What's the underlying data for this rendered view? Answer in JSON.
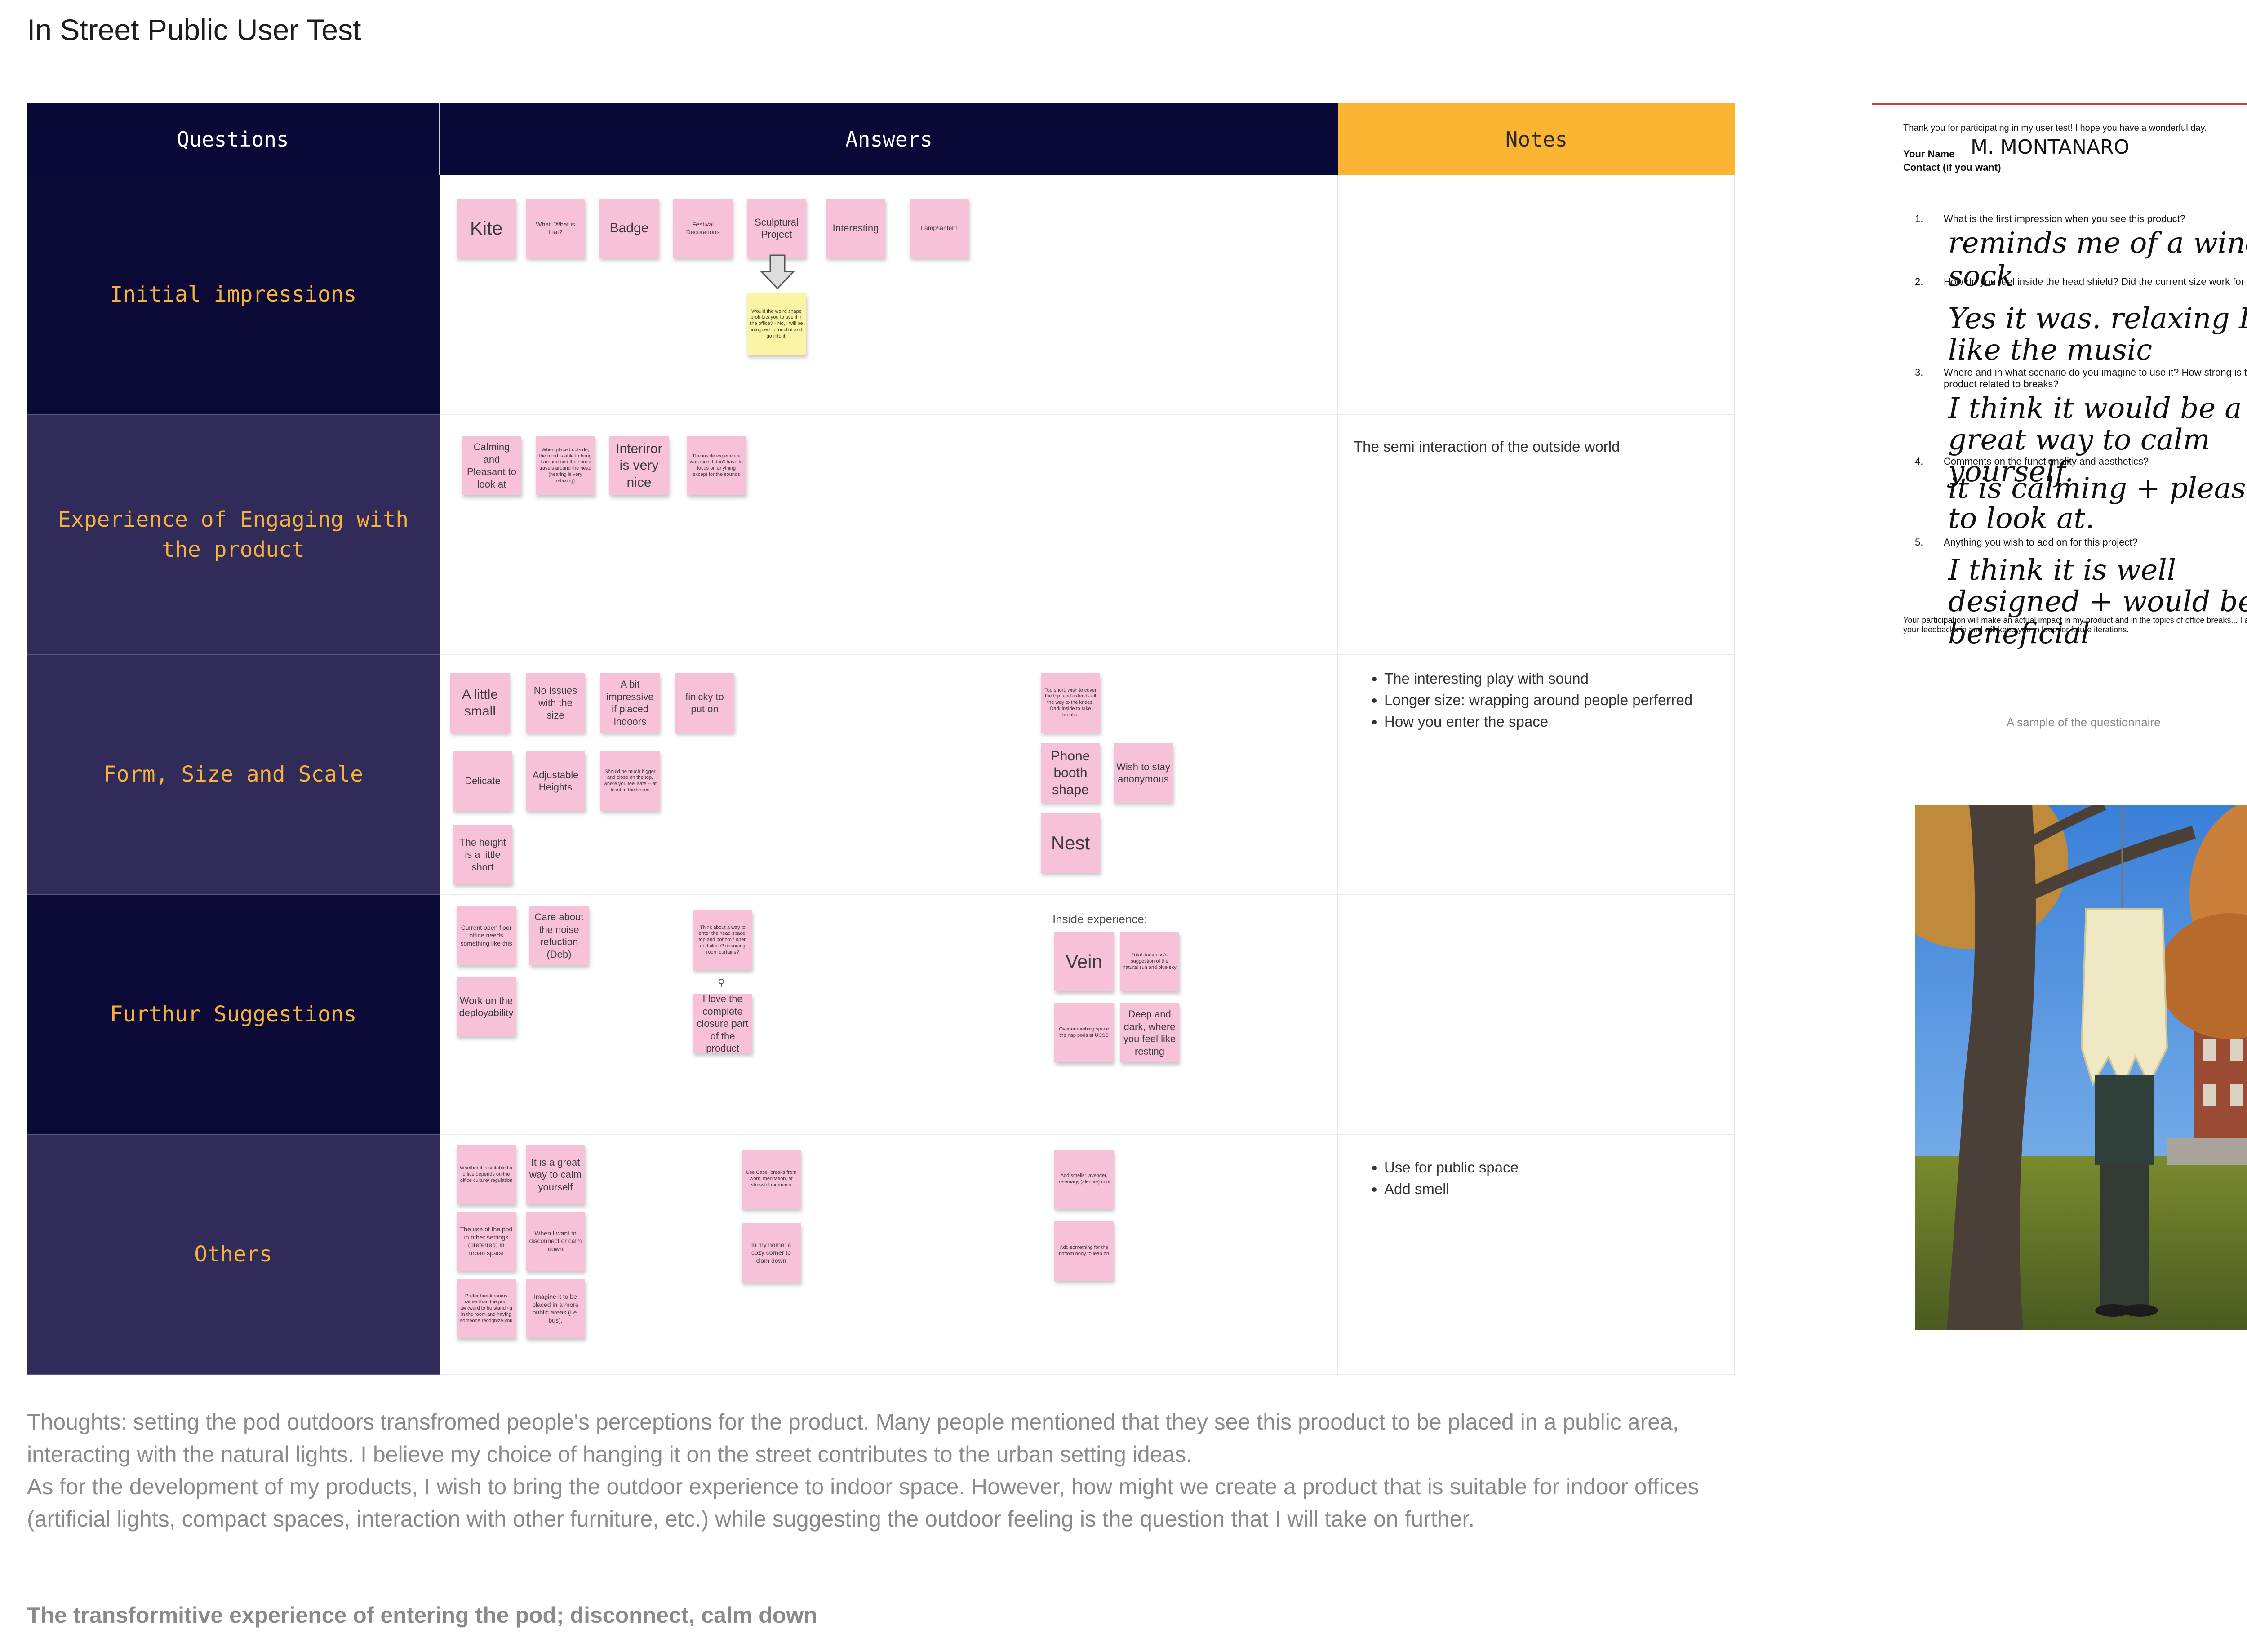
{
  "page": {
    "title": "In Street Public User Test"
  },
  "table": {
    "headers": {
      "questions": "Questions",
      "answers": "Answers",
      "notes": "Notes"
    },
    "rows": [
      {
        "question": "Initial impressions",
        "note": ""
      },
      {
        "question": "Experience of Engaging with the product",
        "note": "The semi interaction of the outside world"
      },
      {
        "question": "Form, Size and Scale",
        "note_items": [
          "The interesting play with sound",
          "Longer size: wrapping around people perferred",
          "How you enter the space"
        ]
      },
      {
        "question": "Furthur Suggestions",
        "note": ""
      },
      {
        "question": "Others",
        "note_items": [
          "Use for public space",
          "Add smell"
        ]
      }
    ]
  },
  "stickies": {
    "r1": [
      "Kite",
      "What..What is that?",
      "Badge",
      "Festival Decorations",
      "Sculptural Project",
      "Interesting",
      "Lamp/lantern",
      "Would the weird shape prohibits you to use it in the office? - No, I will be intrigued to touch it and go into it."
    ],
    "r2": [
      "Calming and Pleasant to look at",
      "When placed outside, the mind is able to bring it around and the sound travels around the head (hearing is very relaxing)",
      "Interiror is very nice",
      "The inside experience was nice. I don't have to focus on anything except for the sounds"
    ],
    "r3": [
      "A little small",
      "No issues with the size",
      "A bit impressive if placed indoors",
      "finicky to put on",
      "Delicate",
      "Adjustable Heights",
      "Should be much bigger and close on the top, where you feel safe -- at least to the knees",
      "The height is a little short",
      "Too short; wish to cover the top, and extends all the way to the knees. Dark inside to take breaks.",
      "Phone booth shape",
      "Wish to stay anonymous",
      "Nest"
    ],
    "r4": [
      "Current open floor office needs something like this",
      "Care about the noise refuction (Deb)",
      "Work on the deployability",
      "Think about a way to enter the head space: top and bottom? open and close? changing room curtains?",
      "I love the complete closure part of the product",
      "Inside experience:",
      "Vein",
      "Total darkness/a suggestion of the natural sun and blue sky",
      "Overturnumbing space the nap pods at UCSB",
      "Deep and dark, where you feel like resting"
    ],
    "r5": [
      "Whether it is suitable for office depends on the office culture/ regulation",
      "It is a great way to calm yourself",
      "The use of the pod in other settings (preferred) in urban space",
      "When I want to disconnect or calm down",
      "Prefer break rooms rather than the pod: awkward to be standing in the room and having someone recognize you",
      "Imagine it to be placed in a more public areas (i.e. bus).",
      "Use Case: breaks from work, meditation, at stressful moments",
      "In my home: a cozy corner to clam down",
      "Add smells: lavender, rosemary, (alertive) mint",
      "Add something for the bottom body to lean on"
    ]
  },
  "thoughts": {
    "p1": "Thoughts: setting the pod outdoors transfromed people's perceptions for the product. Many people mentioned that they see this prooduct to be placed in a public area, interacting with the natural lights. I believe my choice of hanging it on the street contributes to the urban setting ideas.",
    "p2": "As for the development of my products, I wish to bring the outdoor experience to indoor space. However, how might we create a product that is suitable for indoor offices (artificial lights, compact spaces, interaction with other furniture, etc.) while suggesting the outdoor feeling is the question that I will take on further.",
    "bold": "The transformitive experience of entering the pod; disconnect, calm down"
  },
  "questionnaire": {
    "intro": "Thank you for participating in my user test! I hope you have a wonderful day.",
    "name_label": "Your Name",
    "name_value": "M. MONTANARO",
    "contact_label": "Contact (if you want)",
    "questions": [
      {
        "num": "1.",
        "text": "What is the first impression when you see this product?",
        "answer": "reminds me of a wind sock"
      },
      {
        "num": "2.",
        "text": "How do you feel inside the head shield? Did the current size work for you?",
        "answer": "Yes it was. relaxing  I like the music"
      },
      {
        "num": "3.",
        "text": "Where and in what scenario do you imagine to use it? How strong is the product related to breaks?",
        "answer": "I think it would be a great way to calm yourself."
      },
      {
        "num": "4.",
        "text": "Comments on the functionality and aesthetics?",
        "answer": "it is calming + pleasing to look at."
      },
      {
        "num": "5.",
        "text": "Anything you wish to add on for this project?",
        "answer": "I think it is well designed + would be beneficial"
      }
    ],
    "footer": "Your participation will make an actual impact in my product and in the topics of office breaks... I appreciate your feedbacks in and will keep you in loop for future iterations.",
    "caption": "A sample of the questionnaire"
  },
  "colors": {
    "navy": "#0a0837",
    "purple": "#302b59",
    "orange": "#fbb532",
    "pink_sticky": "#f7c1d8",
    "yellow_sticky": "#fbf5a3"
  }
}
